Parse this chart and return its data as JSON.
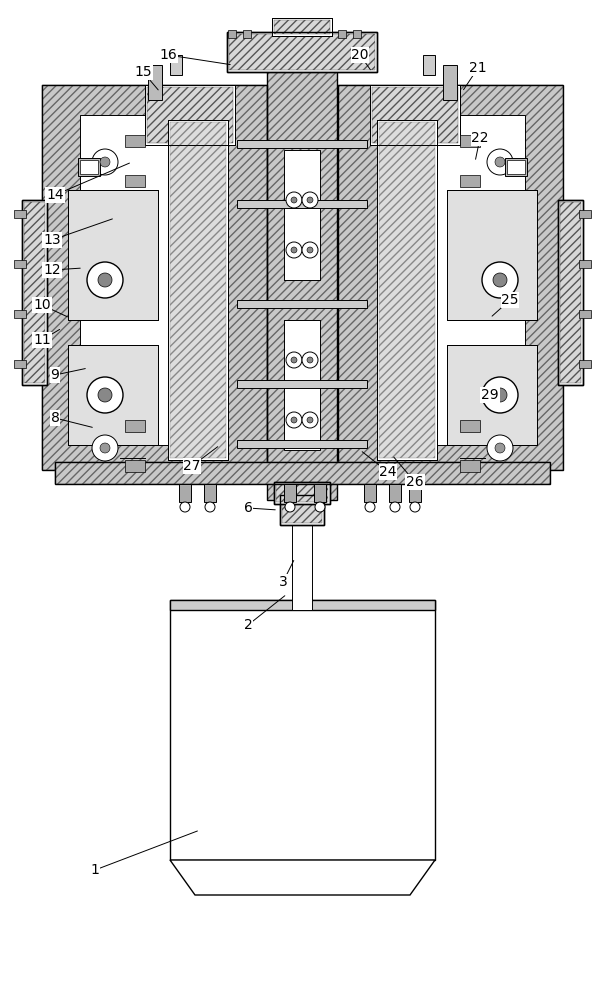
{
  "bg_color": "#ffffff",
  "line_color": "#000000",
  "font_size": 10,
  "hatch_dense": "////",
  "hatch_light": "//",
  "labels_info": [
    [
      "1",
      95,
      870,
      200,
      830
    ],
    [
      "2",
      248,
      625,
      287,
      594
    ],
    [
      "3",
      283,
      582,
      295,
      558
    ],
    [
      "6",
      248,
      508,
      278,
      510
    ],
    [
      "8",
      55,
      418,
      95,
      428
    ],
    [
      "9",
      55,
      375,
      88,
      368
    ],
    [
      "10",
      42,
      305,
      70,
      318
    ],
    [
      "11",
      42,
      340,
      62,
      328
    ],
    [
      "12",
      52,
      270,
      83,
      268
    ],
    [
      "13",
      52,
      240,
      115,
      218
    ],
    [
      "14",
      55,
      195,
      132,
      162
    ],
    [
      "15",
      143,
      72,
      160,
      92
    ],
    [
      "16",
      168,
      55,
      233,
      65
    ],
    [
      "20",
      360,
      55,
      372,
      72
    ],
    [
      "21",
      478,
      68,
      462,
      92
    ],
    [
      "22",
      480,
      138,
      475,
      162
    ],
    [
      "24",
      388,
      472,
      360,
      450
    ],
    [
      "25",
      510,
      300,
      490,
      318
    ],
    [
      "26",
      415,
      482,
      392,
      455
    ],
    [
      "27",
      192,
      466,
      220,
      445
    ],
    [
      "29",
      490,
      395,
      482,
      405
    ]
  ]
}
